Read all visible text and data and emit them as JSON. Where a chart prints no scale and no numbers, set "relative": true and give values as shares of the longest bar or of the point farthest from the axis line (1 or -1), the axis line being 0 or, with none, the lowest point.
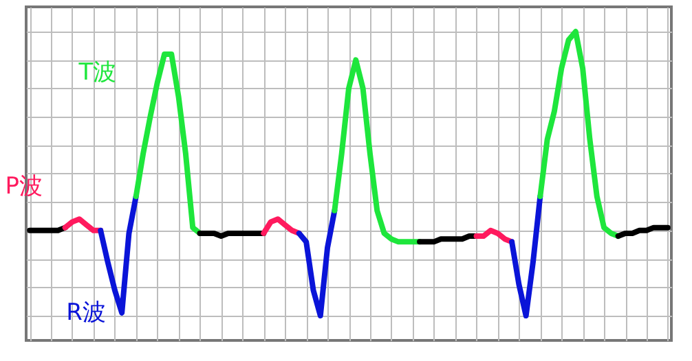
{
  "chart_data": {
    "type": "line",
    "relative": true,
    "grid": true,
    "legend": false,
    "marker": "none",
    "line_style": "solid",
    "categories": [
      null,
      null,
      null,
      null,
      null,
      null,
      null,
      null,
      null,
      null,
      null,
      null,
      null,
      null,
      null,
      null,
      null,
      null,
      null,
      null,
      null,
      null,
      null,
      null,
      null,
      null,
      null,
      null,
      null,
      null,
      null,
      null,
      null,
      null,
      null,
      null,
      null,
      null,
      null,
      null,
      null,
      null,
      null,
      null,
      null,
      null,
      null,
      null,
      null,
      null,
      null,
      null,
      null,
      null,
      null,
      null,
      null,
      null,
      null,
      null,
      null,
      null,
      null,
      null,
      null,
      null,
      null,
      null,
      null,
      null,
      null,
      null,
      null,
      null,
      null,
      null,
      null,
      null,
      null,
      null,
      null,
      null,
      null,
      null,
      null,
      null,
      null,
      null,
      null,
      null,
      null
    ],
    "series": [
      {
        "color": "#000000",
        "values": [
          0.3,
          0.3,
          0.3,
          0.3,
          0.3,
          0.31,
          null,
          null,
          null,
          null,
          null,
          null,
          null,
          null,
          null,
          null,
          null,
          null,
          null,
          null,
          null,
          null,
          null,
          null,
          null,
          null,
          null,
          null,
          null,
          null,
          null,
          null,
          null,
          null,
          null,
          null,
          null,
          null,
          null,
          null,
          null,
          null,
          null,
          null,
          null,
          null,
          null,
          null,
          null,
          null,
          null,
          null,
          null,
          null,
          null,
          null,
          null,
          null,
          null,
          null,
          null,
          null,
          null,
          null,
          null,
          null,
          null,
          null,
          null,
          null,
          null,
          null,
          null,
          null,
          null,
          null,
          null,
          null,
          null,
          null,
          null,
          null,
          null,
          null,
          null,
          null,
          null,
          null,
          null,
          null,
          null
        ]
      },
      {
        "name": "P波",
        "color": "#ff1a5e",
        "values": [
          null,
          null,
          null,
          null,
          null,
          0.31,
          0.33,
          0.34,
          0.32,
          0.3,
          0.3,
          null,
          null,
          null,
          null,
          null,
          null,
          null,
          null,
          null,
          null,
          null,
          null,
          null,
          null,
          null,
          null,
          null,
          null,
          null,
          null,
          null,
          null,
          null,
          null,
          null,
          null,
          null,
          null,
          null,
          null,
          null,
          null,
          null,
          null,
          null,
          null,
          null,
          null,
          null,
          null,
          null,
          null,
          null,
          null,
          null,
          null,
          null,
          null,
          null,
          null,
          null,
          null,
          null,
          null,
          null,
          null,
          null,
          null,
          null,
          null,
          null,
          null,
          null,
          null,
          null,
          null,
          null,
          null,
          null,
          null,
          null,
          null,
          null,
          null,
          null,
          null,
          null,
          null,
          null,
          null
        ]
      },
      {
        "name": "R波",
        "color": "#0a14d8",
        "values": [
          null,
          null,
          null,
          null,
          null,
          null,
          null,
          null,
          null,
          null,
          0.3,
          0.19,
          0.09,
          0.01,
          0.29,
          0.42,
          null,
          null,
          null,
          null,
          null,
          null,
          null,
          null,
          null,
          null,
          null,
          null,
          null,
          null,
          null,
          null,
          null,
          null,
          null,
          null,
          null,
          null,
          null,
          null,
          null,
          null,
          null,
          null,
          null,
          null,
          null,
          null,
          null,
          null,
          null,
          null,
          null,
          null,
          null,
          null,
          null,
          null,
          null,
          null,
          null,
          null,
          null,
          null,
          null,
          null,
          null,
          null,
          null,
          null,
          null,
          null,
          null,
          null,
          null,
          null,
          null,
          null,
          null,
          null,
          null,
          null,
          null,
          null,
          null,
          null,
          null,
          null,
          null,
          null,
          null
        ]
      },
      {
        "name": "T波",
        "color": "#1ee63c",
        "values": [
          null,
          null,
          null,
          null,
          null,
          null,
          null,
          null,
          null,
          null,
          null,
          null,
          null,
          null,
          null,
          0.42,
          0.57,
          0.7,
          0.82,
          0.92,
          0.92,
          0.77,
          0.57,
          0.31,
          0.29,
          null,
          null,
          null,
          null,
          null,
          null,
          null,
          null,
          null,
          null,
          null,
          null,
          null,
          null,
          null,
          null,
          null,
          null,
          null,
          null,
          null,
          null,
          null,
          null,
          null,
          null,
          null,
          null,
          null,
          null,
          null,
          null,
          null,
          null,
          null,
          null,
          null,
          null,
          null,
          null,
          null,
          null,
          null,
          null,
          null,
          null,
          null,
          null,
          null,
          null,
          null,
          null,
          null,
          null,
          null,
          null,
          null,
          null,
          null,
          null,
          null,
          null,
          null,
          null,
          null,
          null
        ]
      },
      {
        "color": "#000000",
        "values": [
          null,
          null,
          null,
          null,
          null,
          null,
          null,
          null,
          null,
          null,
          null,
          null,
          null,
          null,
          null,
          null,
          null,
          null,
          null,
          null,
          null,
          null,
          null,
          null,
          0.29,
          0.29,
          0.29,
          0.28,
          0.29,
          0.29,
          0.29,
          0.29,
          0.29,
          0.29,
          null,
          null,
          null,
          null,
          null,
          null,
          null,
          null,
          null,
          null,
          null,
          null,
          null,
          null,
          null,
          null,
          null,
          null,
          null,
          null,
          null,
          null,
          null,
          null,
          null,
          null,
          null,
          null,
          null,
          null,
          null,
          null,
          null,
          null,
          null,
          null,
          null,
          null,
          null,
          null,
          null,
          null,
          null,
          null,
          null,
          null,
          null,
          null,
          null,
          null,
          null,
          null,
          null,
          null,
          null,
          null,
          null
        ]
      },
      {
        "color": "#ff1a5e",
        "values": [
          null,
          null,
          null,
          null,
          null,
          null,
          null,
          null,
          null,
          null,
          null,
          null,
          null,
          null,
          null,
          null,
          null,
          null,
          null,
          null,
          null,
          null,
          null,
          null,
          null,
          null,
          null,
          null,
          null,
          null,
          null,
          null,
          null,
          0.29,
          0.33,
          0.34,
          0.32,
          0.3,
          0.29,
          null,
          null,
          null,
          null,
          null,
          null,
          null,
          null,
          null,
          null,
          null,
          null,
          null,
          null,
          null,
          null,
          null,
          null,
          null,
          null,
          null,
          null,
          null,
          null,
          null,
          null,
          null,
          null,
          null,
          null,
          null,
          null,
          null,
          null,
          null,
          null,
          null,
          null,
          null,
          null,
          null,
          null,
          null,
          null,
          null,
          null,
          null,
          null,
          null,
          null,
          null,
          null
        ]
      },
      {
        "color": "#0a14d8",
        "values": [
          null,
          null,
          null,
          null,
          null,
          null,
          null,
          null,
          null,
          null,
          null,
          null,
          null,
          null,
          null,
          null,
          null,
          null,
          null,
          null,
          null,
          null,
          null,
          null,
          null,
          null,
          null,
          null,
          null,
          null,
          null,
          null,
          null,
          null,
          null,
          null,
          null,
          null,
          0.29,
          0.26,
          0.09,
          0.0,
          0.24,
          0.37,
          null,
          null,
          null,
          null,
          null,
          null,
          null,
          null,
          null,
          null,
          null,
          null,
          null,
          null,
          null,
          null,
          null,
          null,
          null,
          null,
          null,
          null,
          null,
          null,
          null,
          null,
          null,
          null,
          null,
          null,
          null,
          null,
          null,
          null,
          null,
          null,
          null,
          null,
          null,
          null,
          null,
          null,
          null,
          null,
          null,
          null,
          null
        ]
      },
      {
        "color": "#1ee63c",
        "values": [
          null,
          null,
          null,
          null,
          null,
          null,
          null,
          null,
          null,
          null,
          null,
          null,
          null,
          null,
          null,
          null,
          null,
          null,
          null,
          null,
          null,
          null,
          null,
          null,
          null,
          null,
          null,
          null,
          null,
          null,
          null,
          null,
          null,
          null,
          null,
          null,
          null,
          null,
          null,
          null,
          null,
          null,
          null,
          0.37,
          0.57,
          0.8,
          0.9,
          0.8,
          0.57,
          0.37,
          0.29,
          0.27,
          0.26,
          0.26,
          0.26,
          0.26,
          null,
          null,
          null,
          null,
          null,
          null,
          null,
          null,
          null,
          null,
          null,
          null,
          null,
          null,
          null,
          null,
          null,
          null,
          null,
          null,
          null,
          null,
          null,
          null,
          null,
          null,
          null,
          null,
          null,
          null,
          null,
          null,
          null,
          null,
          null
        ]
      },
      {
        "color": "#000000",
        "values": [
          null,
          null,
          null,
          null,
          null,
          null,
          null,
          null,
          null,
          null,
          null,
          null,
          null,
          null,
          null,
          null,
          null,
          null,
          null,
          null,
          null,
          null,
          null,
          null,
          null,
          null,
          null,
          null,
          null,
          null,
          null,
          null,
          null,
          null,
          null,
          null,
          null,
          null,
          null,
          null,
          null,
          null,
          null,
          null,
          null,
          null,
          null,
          null,
          null,
          null,
          null,
          null,
          null,
          null,
          null,
          0.26,
          0.26,
          0.26,
          0.27,
          0.27,
          0.27,
          0.27,
          0.28,
          0.28,
          null,
          null,
          null,
          null,
          null,
          null,
          null,
          null,
          null,
          null,
          null,
          null,
          null,
          null,
          null,
          null,
          null,
          null,
          null,
          null,
          null,
          null,
          null,
          null,
          null,
          null,
          null
        ]
      },
      {
        "color": "#ff1a5e",
        "values": [
          null,
          null,
          null,
          null,
          null,
          null,
          null,
          null,
          null,
          null,
          null,
          null,
          null,
          null,
          null,
          null,
          null,
          null,
          null,
          null,
          null,
          null,
          null,
          null,
          null,
          null,
          null,
          null,
          null,
          null,
          null,
          null,
          null,
          null,
          null,
          null,
          null,
          null,
          null,
          null,
          null,
          null,
          null,
          null,
          null,
          null,
          null,
          null,
          null,
          null,
          null,
          null,
          null,
          null,
          null,
          null,
          null,
          null,
          null,
          null,
          null,
          null,
          null,
          0.28,
          0.28,
          0.3,
          0.29,
          0.27,
          0.26,
          null,
          null,
          null,
          null,
          null,
          null,
          null,
          null,
          null,
          null,
          null,
          null,
          null,
          null,
          null,
          null,
          null,
          null,
          null,
          null,
          null,
          null
        ]
      },
      {
        "color": "#0a14d8",
        "values": [
          null,
          null,
          null,
          null,
          null,
          null,
          null,
          null,
          null,
          null,
          null,
          null,
          null,
          null,
          null,
          null,
          null,
          null,
          null,
          null,
          null,
          null,
          null,
          null,
          null,
          null,
          null,
          null,
          null,
          null,
          null,
          null,
          null,
          null,
          null,
          null,
          null,
          null,
          null,
          null,
          null,
          null,
          null,
          null,
          null,
          null,
          null,
          null,
          null,
          null,
          null,
          null,
          null,
          null,
          null,
          null,
          null,
          null,
          null,
          null,
          null,
          null,
          null,
          null,
          null,
          null,
          null,
          null,
          0.26,
          0.11,
          0.0,
          0.19,
          0.42,
          null,
          null,
          null,
          null,
          null,
          null,
          null,
          null,
          null,
          null,
          null,
          null,
          null,
          null,
          null,
          null,
          null,
          null
        ]
      },
      {
        "color": "#1ee63c",
        "values": [
          null,
          null,
          null,
          null,
          null,
          null,
          null,
          null,
          null,
          null,
          null,
          null,
          null,
          null,
          null,
          null,
          null,
          null,
          null,
          null,
          null,
          null,
          null,
          null,
          null,
          null,
          null,
          null,
          null,
          null,
          null,
          null,
          null,
          null,
          null,
          null,
          null,
          null,
          null,
          null,
          null,
          null,
          null,
          null,
          null,
          null,
          null,
          null,
          null,
          null,
          null,
          null,
          null,
          null,
          null,
          null,
          null,
          null,
          null,
          null,
          null,
          null,
          null,
          null,
          null,
          null,
          null,
          null,
          null,
          null,
          null,
          null,
          0.42,
          0.62,
          0.72,
          0.87,
          0.97,
          1.0,
          0.87,
          0.62,
          0.42,
          0.31,
          0.29,
          0.28,
          null,
          null,
          null,
          null,
          null,
          null,
          null
        ]
      },
      {
        "color": "#000000",
        "values": [
          null,
          null,
          null,
          null,
          null,
          null,
          null,
          null,
          null,
          null,
          null,
          null,
          null,
          null,
          null,
          null,
          null,
          null,
          null,
          null,
          null,
          null,
          null,
          null,
          null,
          null,
          null,
          null,
          null,
          null,
          null,
          null,
          null,
          null,
          null,
          null,
          null,
          null,
          null,
          null,
          null,
          null,
          null,
          null,
          null,
          null,
          null,
          null,
          null,
          null,
          null,
          null,
          null,
          null,
          null,
          null,
          null,
          null,
          null,
          null,
          null,
          null,
          null,
          null,
          null,
          null,
          null,
          null,
          null,
          null,
          null,
          null,
          null,
          null,
          null,
          null,
          null,
          null,
          null,
          null,
          null,
          null,
          null,
          0.28,
          0.29,
          0.29,
          0.3,
          0.3,
          0.31,
          0.31,
          0.31
        ]
      }
    ]
  }
}
